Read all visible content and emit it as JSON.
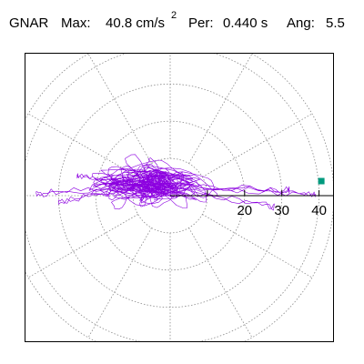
{
  "header": {
    "station": "GNAR",
    "max_label": "Max:",
    "max_value": "40.8 cm/s",
    "max_unit_exp": "2",
    "per_label": "Per:",
    "per_value": "0.440 s",
    "ang_label": "Ang:",
    "ang_value": "5.5"
  },
  "chart_data": {
    "type": "polar-orbit",
    "title": "",
    "radial_ticks": [
      "20",
      "30",
      "40"
    ],
    "radial_tick_values": [
      20,
      30,
      40
    ],
    "rmax": 44,
    "ring_step": 10,
    "spoke_step_deg": 30,
    "grid": true,
    "peak": {
      "value": 40.8,
      "angle_deg": 5.5,
      "marker_color": "#009a7e"
    },
    "trace_color": "#8c00e0",
    "grid_color": "#888888",
    "axis_color": "#000000"
  }
}
